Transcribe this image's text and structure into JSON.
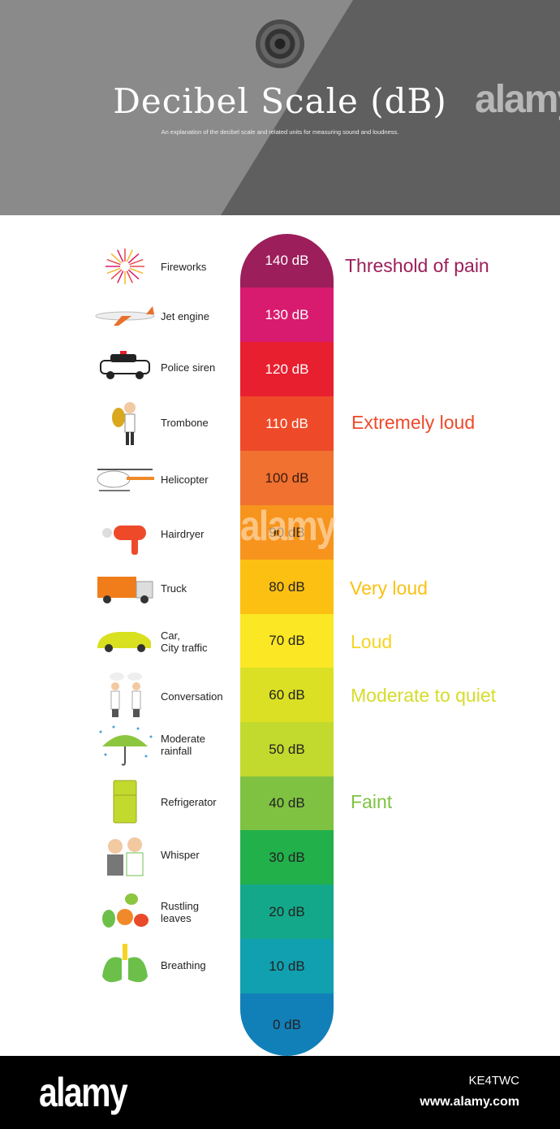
{
  "header": {
    "title": "Decibel Scale (dB)",
    "subtitle": "An explanation of the decibel scale and related units for measuring sound and loudness."
  },
  "scale": [
    {
      "label": "140 dB",
      "color": "#9c1e5a",
      "text_color": "#ffffff"
    },
    {
      "label": "130 dB",
      "color": "#d81b6e",
      "text_color": "#ffffff"
    },
    {
      "label": "120 dB",
      "color": "#e81f2e",
      "text_color": "#ffffff"
    },
    {
      "label": "110 dB",
      "color": "#ee4a2a",
      "text_color": "#ffffff"
    },
    {
      "label": "100 dB",
      "color": "#f07130",
      "text_color": "#3a1a10"
    },
    {
      "label": "90 dB",
      "color": "#f7941d",
      "text_color": "#3a2a10"
    },
    {
      "label": "80 dB",
      "color": "#fcc012",
      "text_color": "#222222"
    },
    {
      "label": "70 dB",
      "color": "#fbe723",
      "text_color": "#222222"
    },
    {
      "label": "60 dB",
      "color": "#dbe025",
      "text_color": "#222222"
    },
    {
      "label": "50 dB",
      "color": "#c2d92e",
      "text_color": "#222222"
    },
    {
      "label": "40 dB",
      "color": "#7fc242",
      "text_color": "#222222"
    },
    {
      "label": "30 dB",
      "color": "#22b04b",
      "text_color": "#222222"
    },
    {
      "label": "20 dB",
      "color": "#14a88a",
      "text_color": "#222222"
    },
    {
      "label": "10 dB",
      "color": "#11a0b0",
      "text_color": "#222222"
    },
    {
      "label": "0 dB",
      "color": "#1280b8",
      "text_color": "#222222"
    }
  ],
  "sources": [
    {
      "label": "Fireworks",
      "icon": "fireworks-icon",
      "color": "#e8484b"
    },
    {
      "label": "Jet engine",
      "icon": "airplane-icon",
      "color": "#e8702a"
    },
    {
      "label": "Police siren",
      "icon": "police-car-icon",
      "color": "#222222"
    },
    {
      "label": "Trombone",
      "icon": "trombone-player-icon",
      "color": "#d9a81e"
    },
    {
      "label": "Helicopter",
      "icon": "helicopter-icon",
      "color": "#f0892a"
    },
    {
      "label": "Hairdryer",
      "icon": "hairdryer-icon",
      "color": "#ee4a2a"
    },
    {
      "label": "Truck",
      "icon": "truck-icon",
      "color": "#f07d1a"
    },
    {
      "label": "Car,\nCity traffic",
      "icon": "car-icon",
      "color": "#d8e020"
    },
    {
      "label": "Conversation",
      "icon": "conversation-icon",
      "color": "#555555"
    },
    {
      "label": "Moderate\nrainfall",
      "icon": "umbrella-icon",
      "color": "#8cc63f"
    },
    {
      "label": "Refrigerator",
      "icon": "refrigerator-icon",
      "color": "#c2d92e"
    },
    {
      "label": "Whisper",
      "icon": "whisper-icon",
      "color": "#555555"
    },
    {
      "label": "Rustling\nleaves",
      "icon": "leaves-icon",
      "color": "#f0892a"
    },
    {
      "label": "Breathing",
      "icon": "lungs-icon",
      "color": "#6cc04a"
    }
  ],
  "levels": [
    {
      "label": "Threshold of pain",
      "color": "#9c1e5a"
    },
    {
      "label": "Extremely loud",
      "color": "#ee4a2a"
    },
    {
      "label": "Very loud",
      "color": "#fcc012"
    },
    {
      "label": "Loud",
      "color": "#f5d422"
    },
    {
      "label": "Moderate to quiet",
      "color": "#d6dc2a"
    },
    {
      "label": "Faint",
      "color": "#7fc242"
    }
  ],
  "watermark": {
    "text": "alamy",
    "letter": "a"
  },
  "footer": {
    "logo": "alamy",
    "image_id": "KE4TWC",
    "url": "www.alamy.com"
  }
}
